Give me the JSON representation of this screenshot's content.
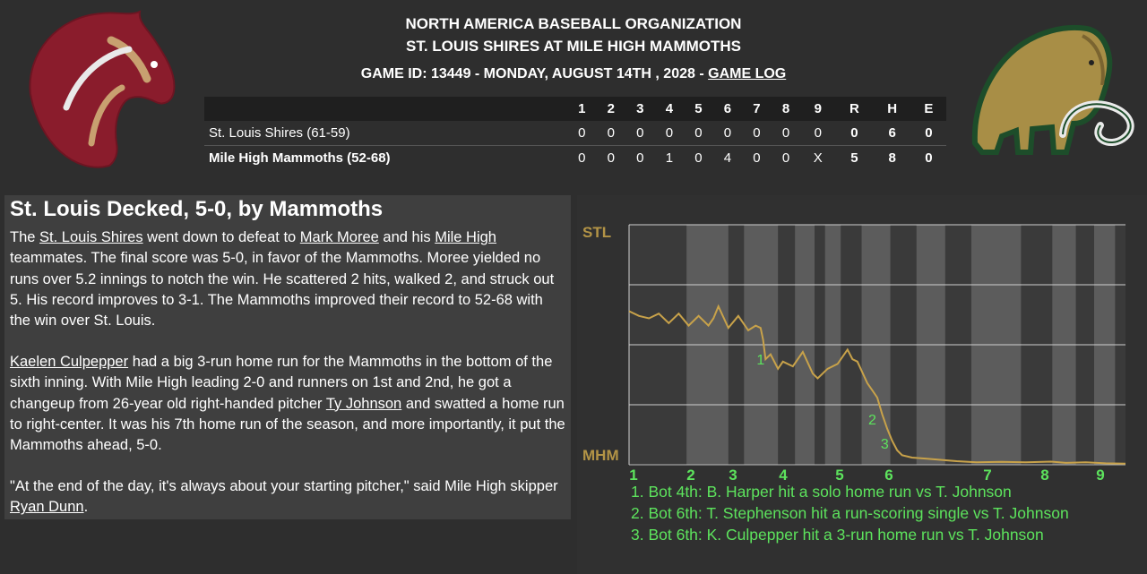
{
  "header": {
    "org": "NORTH AMERICA BASEBALL ORGANIZATION",
    "matchup": "ST. LOUIS SHIRES AT MILE HIGH MAMMOTHS",
    "game_info": "GAME ID: 13449 - MONDAY, AUGUST 14TH , 2028 - ",
    "game_log_link": "GAME LOG"
  },
  "logos": {
    "away": "horse-logo",
    "home": "mammoth-logo"
  },
  "linescore": {
    "columns": [
      "1",
      "2",
      "3",
      "4",
      "5",
      "6",
      "7",
      "8",
      "9",
      "R",
      "H",
      "E"
    ],
    "rows": [
      {
        "team": "St. Louis Shires (61-59)",
        "innings": [
          "0",
          "0",
          "0",
          "0",
          "0",
          "0",
          "0",
          "0",
          "0"
        ],
        "r": "0",
        "h": "6",
        "e": "0"
      },
      {
        "team": "Mile High Mammoths (52-68)",
        "innings": [
          "0",
          "0",
          "0",
          "1",
          "0",
          "4",
          "0",
          "0",
          "X"
        ],
        "r": "5",
        "h": "8",
        "e": "0"
      }
    ]
  },
  "recap": {
    "headline": "St. Louis Decked, 5-0, by Mammoths",
    "p1": {
      "t1": "The ",
      "l1": "St. Louis Shires",
      "t2": " went down to defeat to ",
      "l2": "Mark Moree",
      "t3": " and his ",
      "l3": "Mile High",
      "t4": " teammates. The final score was 5-0, in favor of the Mammoths. Moree yielded no runs over 5.2 innings to notch the win. He scattered 2 hits, walked 2, and struck out 5. His record improves to 3-1. The Mammoths improved their record to 52-68 with the win over St. Louis."
    },
    "p2": {
      "l1": "Kaelen Culpepper",
      "t1": " had a big 3-run home run for the Mammoths in the bottom of the sixth inning. With Mile High leading 2-0 and runners on 1st and 2nd, he got a changeup from 26-year old right-handed pitcher ",
      "l2": "Ty Johnson",
      "t2": " and swatted a home run to right-center. It was his 7th home run of the season, and more importantly, it put the Mammoths ahead, 5-0."
    },
    "p3": {
      "t1": "\"At the end of the day, it's always about your starting pitcher,\" said Mile High skipper ",
      "l1": "Ryan Dunn",
      "t2": "."
    }
  },
  "chart_data": {
    "type": "line",
    "top_label": "STL",
    "bottom_label": "MHM",
    "x_labels": [
      "1",
      "2",
      "3",
      "4",
      "5",
      "6",
      "7",
      "8",
      "9"
    ],
    "line_color": "#c8a24a",
    "marker_color": "#5de35d",
    "ylim": [
      0,
      100
    ],
    "points": [
      [
        0,
        64
      ],
      [
        2,
        62
      ],
      [
        4,
        61
      ],
      [
        6,
        63
      ],
      [
        8,
        59
      ],
      [
        10,
        63
      ],
      [
        12,
        58
      ],
      [
        14,
        62
      ],
      [
        16,
        58
      ],
      [
        17,
        61
      ],
      [
        18,
        66
      ],
      [
        20,
        57
      ],
      [
        22,
        62
      ],
      [
        24,
        56
      ],
      [
        25.5,
        58
      ],
      [
        26.5,
        57
      ],
      [
        27,
        52
      ],
      [
        27.5,
        44
      ],
      [
        28.5,
        46
      ],
      [
        30,
        40
      ],
      [
        31,
        43
      ],
      [
        33,
        41
      ],
      [
        35,
        47
      ],
      [
        37,
        38
      ],
      [
        38,
        36
      ],
      [
        40,
        40
      ],
      [
        42,
        42
      ],
      [
        44,
        48
      ],
      [
        45,
        44
      ],
      [
        46,
        43
      ],
      [
        48,
        34
      ],
      [
        49,
        31
      ],
      [
        50,
        28
      ],
      [
        51,
        21
      ],
      [
        52,
        15
      ],
      [
        53,
        10
      ],
      [
        54,
        6
      ],
      [
        55,
        4
      ],
      [
        57,
        3
      ],
      [
        60,
        2.5
      ],
      [
        63,
        2
      ],
      [
        66,
        1.5
      ],
      [
        70,
        1
      ],
      [
        75,
        1.2
      ],
      [
        80,
        1
      ],
      [
        85,
        1.3
      ],
      [
        88,
        0.8
      ],
      [
        92,
        1
      ],
      [
        96,
        0.6
      ],
      [
        100,
        0.5
      ]
    ],
    "markers": [
      {
        "label": "1",
        "x": 26.5,
        "y": 44
      },
      {
        "label": "2",
        "x": 49,
        "y": 19
      },
      {
        "label": "3",
        "x": 51.5,
        "y": 9
      }
    ],
    "events": [
      "1. Bot 4th: B. Harper hit a solo home run vs T. Johnson",
      "2. Bot 6th: T. Stephenson hit a run-scoring single vs T. Johnson",
      "3. Bot 6th: K. Culpepper hit a 3-run home run vs T. Johnson"
    ]
  }
}
